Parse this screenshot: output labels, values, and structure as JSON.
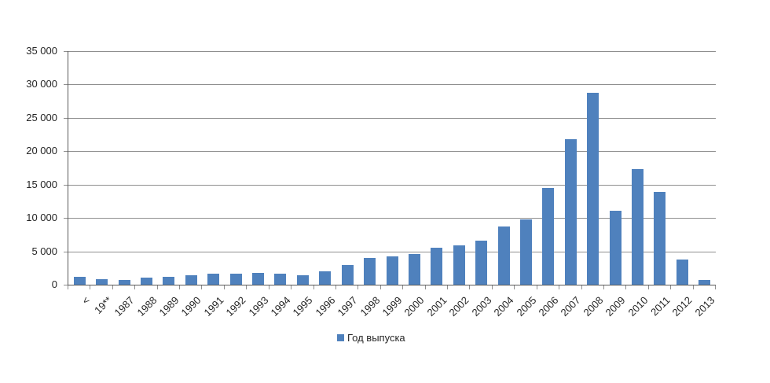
{
  "page": {
    "background_color": "#ffffff"
  },
  "chart_data": {
    "type": "bar",
    "title": "",
    "xlabel": "",
    "ylabel": "",
    "legend_label": "Год выпуска",
    "legend_position": "bottom-center",
    "grid": true,
    "bar_color": "#4f81bd",
    "gridline_color": "#8f8f8f",
    "axis_color": "#595959",
    "text_color": "#262626",
    "ylim": [
      0,
      35000
    ],
    "y_tick_step": 5000,
    "y_ticks": [
      {
        "value": 0,
        "label": "0"
      },
      {
        "value": 5000,
        "label": "5 000"
      },
      {
        "value": 10000,
        "label": "10 000"
      },
      {
        "value": 15000,
        "label": "15 000"
      },
      {
        "value": 20000,
        "label": "20 000"
      },
      {
        "value": 25000,
        "label": "25 000"
      },
      {
        "value": 30000,
        "label": "30 000"
      },
      {
        "value": 35000,
        "label": "35 000"
      }
    ],
    "categories": [
      "<",
      "19**",
      "1987",
      "1988",
      "1989",
      "1990",
      "1991",
      "1992",
      "1993",
      "1994",
      "1995",
      "1996",
      "1997",
      "1998",
      "1999",
      "2000",
      "2001",
      "2002",
      "2003",
      "2004",
      "2005",
      "2006",
      "2007",
      "2008",
      "2009",
      "2010",
      "2011",
      "2012",
      "2013"
    ],
    "values": [
      1200,
      850,
      650,
      1050,
      1200,
      1450,
      1650,
      1600,
      1800,
      1600,
      1400,
      2000,
      2950,
      3950,
      4300,
      4550,
      5500,
      5850,
      6550,
      8700,
      9800,
      14450,
      21800,
      28700,
      11100,
      17350,
      13850,
      3750,
      650
    ]
  }
}
